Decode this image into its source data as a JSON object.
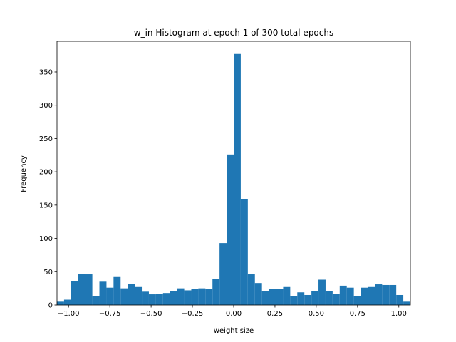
{
  "chart_data": {
    "type": "bar",
    "title": "w_in Histogram at epoch 1 of 300 total epochs",
    "xlabel": "weight size",
    "ylabel": "Frequency",
    "xlim": [
      -1.07,
      1.07
    ],
    "ylim": [
      0,
      396
    ],
    "xticks": [
      -1.0,
      -0.75,
      -0.5,
      -0.25,
      0.0,
      0.25,
      0.5,
      0.75,
      1.0
    ],
    "xtick_labels": [
      "−1.00",
      "−0.75",
      "−0.50",
      "−0.25",
      "0.00",
      "0.25",
      "0.50",
      "0.75",
      "1.00"
    ],
    "yticks": [
      0,
      50,
      100,
      150,
      200,
      250,
      300,
      350
    ],
    "ytick_labels": [
      "0",
      "50",
      "100",
      "150",
      "200",
      "250",
      "300",
      "350"
    ],
    "bin_start": -1.07,
    "bin_width": 0.0428,
    "values": [
      5,
      8,
      36,
      47,
      46,
      13,
      35,
      26,
      42,
      25,
      32,
      27,
      20,
      16,
      17,
      18,
      21,
      25,
      22,
      24,
      25,
      24,
      39,
      93,
      226,
      377,
      159,
      46,
      33,
      21,
      24,
      24,
      27,
      13,
      19,
      15,
      21,
      38,
      21,
      17,
      29,
      26,
      13,
      26,
      27,
      31,
      30,
      30,
      15,
      5
    ],
    "bar_color": "#1f77b4",
    "grid": false,
    "legend": false
  }
}
